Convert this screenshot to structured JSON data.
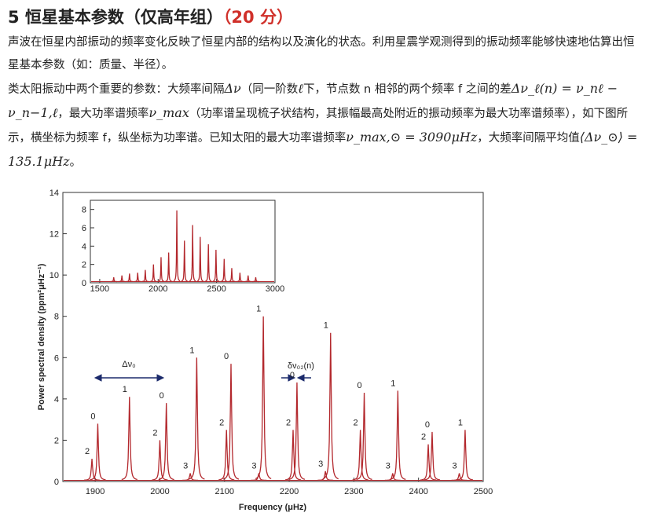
{
  "header": {
    "title": "5 恒星基本参数（仅高年组）",
    "score": "（20 分）"
  },
  "paragraphs": [
    [
      "声波在恒星内部振动的频率变化反映了恒星内部的结构以及演化的状态。利用星震学观测得到的振动频率能够快速地估算出恒星基本参数（如：质量、半径）。"
    ],
    [
      "类太阳振动中两个重要的参数：大频率间隔",
      "Δν",
      "（同一阶数",
      "ℓ",
      "下，节点数 n 相邻的两个频率 f 之间的差",
      "Δν_ℓ(n) = ν_nℓ − ν_n−1,ℓ",
      "，最大功率谱频率",
      "ν_max",
      "（功率谱呈现梳子状结构，其振幅最高处附近的振动频率为最大功率谱频率），如下图所示，横坐标为频率 f，纵坐标为功率谱。已知太阳的最大功率谱频率",
      "ν_max,⊙ = 3090μHz",
      "，大频率间隔平均值",
      "⟨Δν_⊙⟩ = 135.1μHz",
      "。"
    ]
  ],
  "chart_data": [
    {
      "type": "line",
      "xlabel": "Frequency (μHz)",
      "ylabel": "Power spectral density (ppm²μHz⁻¹)",
      "x": [
        1895,
        1904,
        1953,
        2000,
        2010,
        2047,
        2057,
        2103,
        2110,
        2153,
        2160,
        2206,
        2212,
        2256,
        2264,
        2310,
        2316,
        2360,
        2368,
        2415,
        2421,
        2463,
        2472
      ],
      "values": [
        1.1,
        2.8,
        4.1,
        2.0,
        3.8,
        0.4,
        6.0,
        2.5,
        5.7,
        0.4,
        8.0,
        2.5,
        4.8,
        0.5,
        7.2,
        2.5,
        4.3,
        0.4,
        4.4,
        1.8,
        2.4,
        0.4,
        2.5
      ],
      "point_labels": [
        "2",
        "0",
        "1",
        "2",
        "0",
        "3",
        "1",
        "2",
        "0",
        "3",
        "1",
        "2",
        "0",
        "3",
        "1",
        "2",
        "0",
        "3",
        "1",
        "2",
        "0",
        "3",
        "1"
      ],
      "color": "#b3282d",
      "xlim": [
        1850,
        2500
      ],
      "xticks": [
        1900,
        2000,
        2100,
        2200,
        2300,
        2400,
        2500
      ],
      "ylim": [
        0,
        14
      ],
      "yticks": [
        0,
        2,
        4,
        6,
        8,
        10,
        12,
        14
      ],
      "annotations": [
        "Δν₀",
        "δν₀₂(n)"
      ]
    },
    {
      "type": "line",
      "x": [
        1620,
        1690,
        1755,
        1825,
        1890,
        1960,
        2025,
        2090,
        2160,
        2225,
        2295,
        2360,
        2430,
        2495,
        2565,
        2630,
        2700,
        2770,
        2835
      ],
      "values": [
        0.6,
        0.8,
        1.0,
        1.1,
        1.4,
        2.0,
        2.8,
        3.3,
        7.9,
        4.6,
        6.3,
        5.0,
        4.2,
        3.6,
        2.6,
        1.6,
        1.1,
        0.8,
        0.6
      ],
      "color": "#b3282d",
      "xlim": [
        1420,
        3000
      ],
      "xticks": [
        1500,
        2000,
        2500,
        3000
      ],
      "ylim": [
        0,
        9
      ],
      "yticks": [
        0,
        2,
        4,
        6,
        8
      ]
    }
  ]
}
